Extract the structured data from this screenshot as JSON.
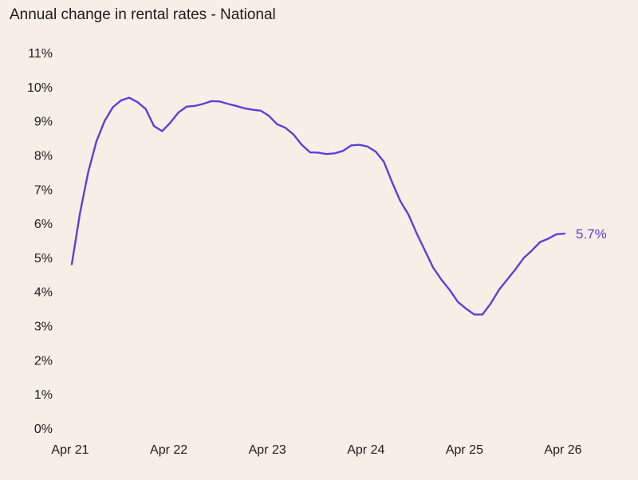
{
  "title": "Annual change in rental rates - National",
  "colors": {
    "background": "#f7efe5",
    "line": "#5b3fe0",
    "text": "#1c1c1c"
  },
  "chart_data": {
    "type": "line",
    "title": "Annual change in rental rates - National",
    "xlabel": "",
    "ylabel": "",
    "x_tick_labels": [
      "Apr 21",
      "Apr 22",
      "Apr 23",
      "Apr 24",
      "Apr 25",
      "Apr 26"
    ],
    "y_tick_labels": [
      "0%",
      "1%",
      "2%",
      "3%",
      "4%",
      "5%",
      "6%",
      "7%",
      "8%",
      "9%",
      "10%",
      "11%"
    ],
    "ylim": [
      0,
      11
    ],
    "grid": false,
    "end_label": "5.7%",
    "series": [
      {
        "x": [
          "Apr 21",
          "May 21",
          "Jun 21",
          "Jul 21",
          "Aug 21",
          "Sep 21",
          "Oct 21",
          "Nov 21",
          "Dec 21",
          "Jan 22",
          "Feb 22",
          "Mar 22",
          "Apr 22",
          "May 22",
          "Jun 22",
          "Jul 22",
          "Aug 22",
          "Sep 22",
          "Oct 22",
          "Nov 22",
          "Dec 22",
          "Jan 23",
          "Feb 23",
          "Mar 23",
          "Apr 23",
          "May 23",
          "Jun 23",
          "Jul 23",
          "Aug 23",
          "Sep 23",
          "Oct 23",
          "Nov 23",
          "Dec 23",
          "Jan 24",
          "Feb 24",
          "Mar 24",
          "Apr 24",
          "May 24",
          "Jun 24",
          "Jul 24",
          "Aug 24",
          "Sep 24",
          "Oct 24",
          "Nov 24",
          "Dec 24",
          "Jan 25",
          "Feb 25",
          "Mar 25",
          "Apr 25",
          "May 25",
          "Jun 25",
          "Jul 25",
          "Aug 25",
          "Sep 25",
          "Oct 25",
          "Nov 25",
          "Dec 25",
          "Jan 26",
          "Feb 26",
          "Mar 26",
          "Apr 26"
        ],
        "values": [
          4.8,
          6.3,
          7.5,
          8.4,
          9.0,
          9.4,
          9.6,
          9.68,
          9.55,
          9.35,
          8.85,
          8.7,
          8.95,
          9.25,
          9.42,
          9.44,
          9.5,
          9.58,
          9.57,
          9.5,
          9.44,
          9.37,
          9.33,
          9.3,
          9.15,
          8.9,
          8.8,
          8.6,
          8.3,
          8.08,
          8.07,
          8.03,
          8.05,
          8.12,
          8.28,
          8.3,
          8.25,
          8.1,
          7.8,
          7.2,
          6.65,
          6.25,
          5.7,
          5.2,
          4.7,
          4.35,
          4.05,
          3.7,
          3.5,
          3.33,
          3.33,
          3.65,
          4.05,
          4.35,
          4.65,
          4.98,
          5.2,
          5.45,
          5.55,
          5.68,
          5.7
        ]
      }
    ]
  }
}
